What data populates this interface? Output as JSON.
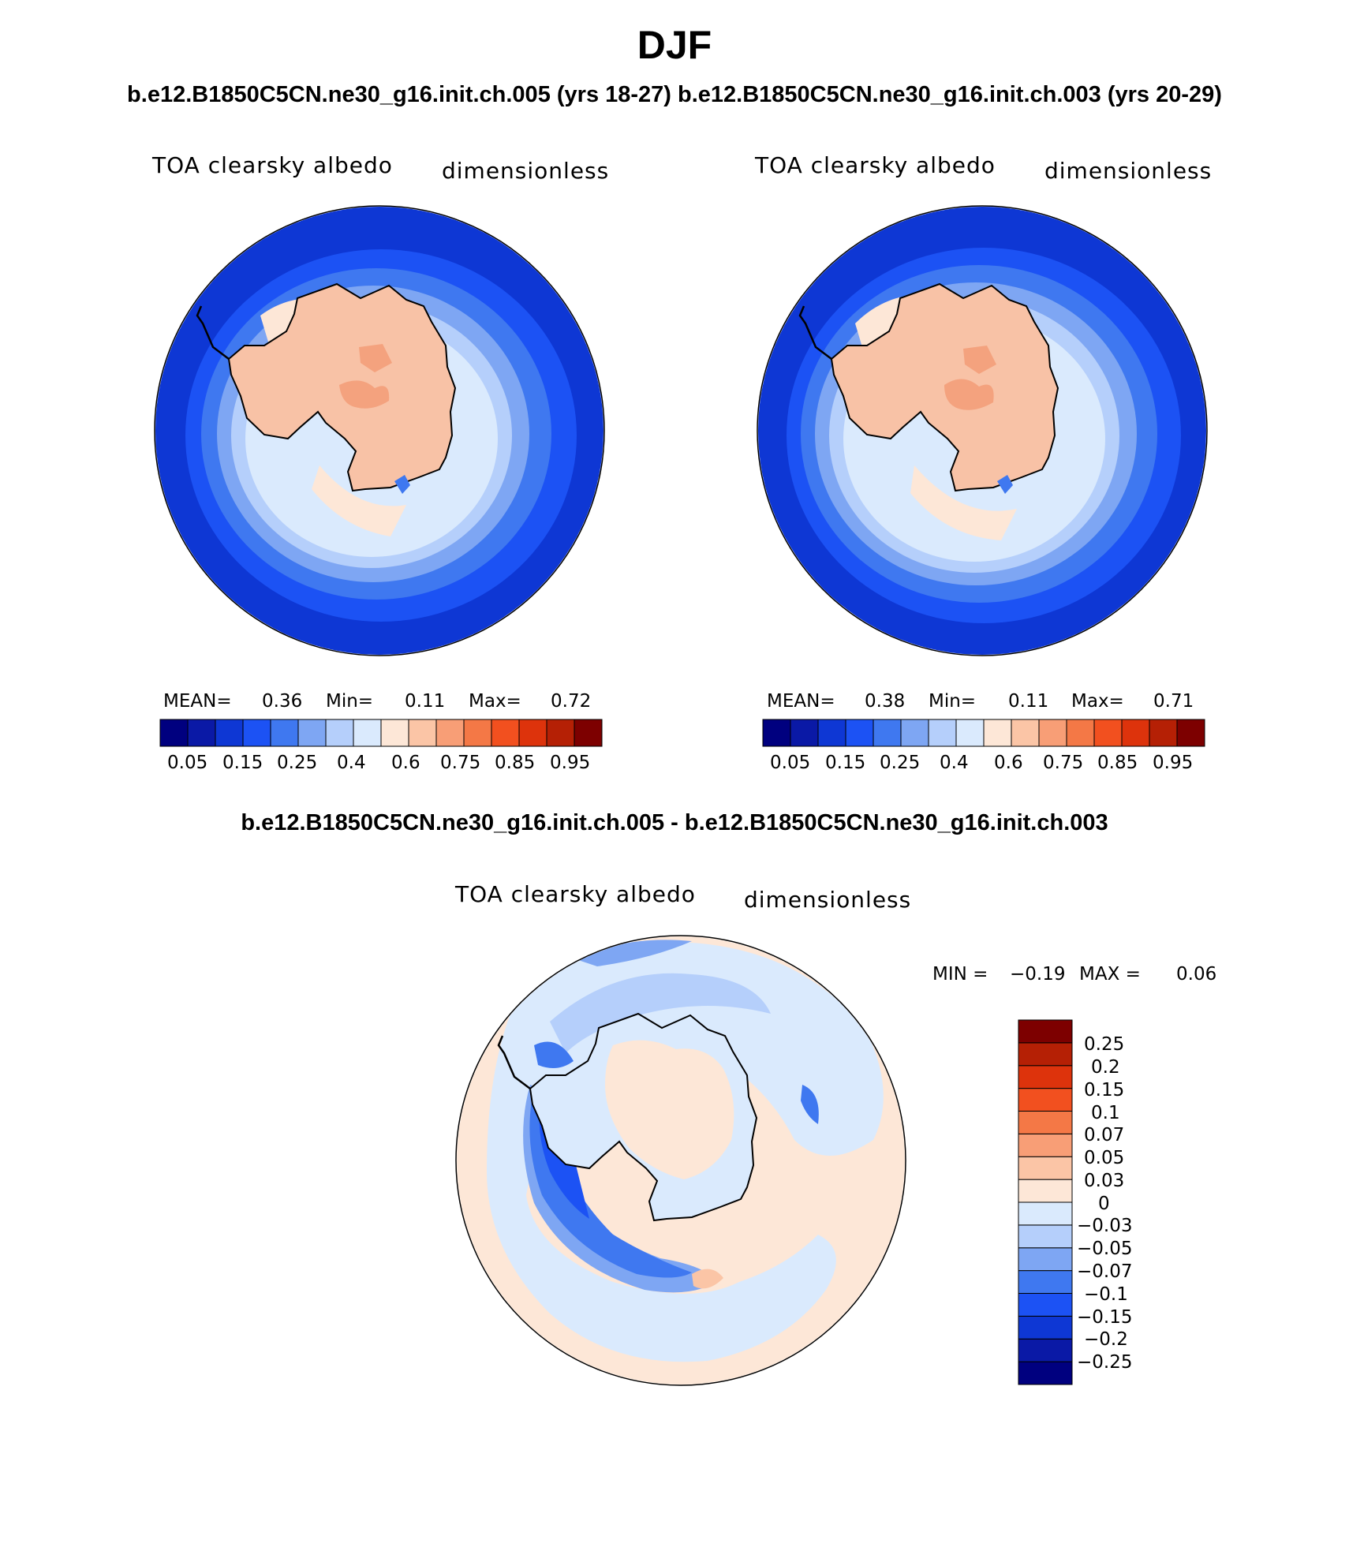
{
  "title": "DJF",
  "subtitle": "b.e12.B1850C5CN.ne30_g16.init.ch.005 (yrs 18-27) b.e12.B1850C5CN.ne30_g16.init.ch.003 (yrs 20-29)",
  "diff_title": "b.e12.B1850C5CN.ne30_g16.init.ch.005 - b.e12.B1850C5CN.ne30_g16.init.ch.003",
  "colors": {
    "abs_scale": [
      "#00007f",
      "#0a19a6",
      "#0e37d4",
      "#1c52f4",
      "#3f78f0",
      "#7ea6f3",
      "#b5cffb",
      "#daeafd",
      "#fde7d7",
      "#fbc5a6",
      "#f89e76",
      "#f47846",
      "#f2501f",
      "#dd330c",
      "#b52005",
      "#7d0000"
    ],
    "diff_scale": [
      "#00007f",
      "#0a19a6",
      "#0e37d4",
      "#1c52f4",
      "#3f78f0",
      "#7ea6f3",
      "#b5cffb",
      "#daeafd",
      "#fde7d7",
      "#fbc5a6",
      "#f89e76",
      "#f47846",
      "#f2501f",
      "#dd330c",
      "#b52005",
      "#7d0000"
    ],
    "land_abs": "#f8c2a6",
    "land_abs_high": "#f4a27e"
  },
  "panels": [
    {
      "variable": "TOA clearsky albedo",
      "units": "dimensionless",
      "mean_label": "MEAN=",
      "mean": "0.36",
      "min_label": "Min=",
      "min": "0.11",
      "max_label": "Max=",
      "max": "0.72",
      "ticks": [
        "0.05",
        "0.15",
        "0.25",
        "0.4",
        "0.6",
        "0.75",
        "0.85",
        "0.95"
      ]
    },
    {
      "variable": "TOA clearsky albedo",
      "units": "dimensionless",
      "mean_label": "MEAN=",
      "mean": "0.38",
      "min_label": "Min=",
      "min": "0.11",
      "max_label": "Max=",
      "max": "0.71",
      "ticks": [
        "0.05",
        "0.15",
        "0.25",
        "0.4",
        "0.6",
        "0.75",
        "0.85",
        "0.95"
      ]
    }
  ],
  "diff_panel": {
    "variable": "TOA clearsky albedo",
    "units": "dimensionless",
    "min_label": "MIN =",
    "min": "−0.19",
    "max_label": "MAX =",
    "max": "0.06",
    "ticks": [
      "0.25",
      "0.2",
      "0.15",
      "0.1",
      "0.07",
      "0.05",
      "0.03",
      "0",
      "−0.03",
      "−0.05",
      "−0.07",
      "−0.1",
      "−0.15",
      "−0.2",
      "−0.25"
    ]
  }
}
